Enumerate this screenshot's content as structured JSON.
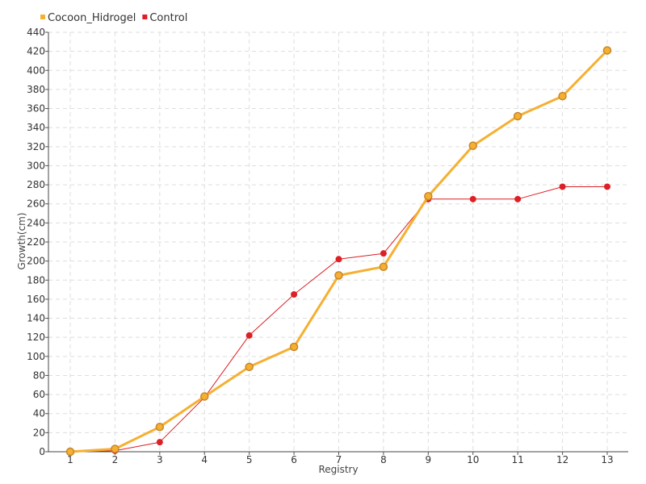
{
  "chart_data": {
    "type": "line",
    "title": "",
    "xlabel": "Registry",
    "ylabel": "Growth(cm)",
    "x": [
      "1",
      "2",
      "3",
      "4",
      "5",
      "6",
      "7",
      "8",
      "9",
      "10",
      "11",
      "12",
      "13"
    ],
    "ylim": [
      0,
      440
    ],
    "yticks": [
      0,
      20,
      40,
      60,
      80,
      100,
      120,
      140,
      160,
      180,
      200,
      220,
      240,
      260,
      280,
      300,
      320,
      340,
      360,
      380,
      400,
      420,
      440
    ],
    "grid": true,
    "legend_position": "top-left",
    "series": [
      {
        "name": "Cocoon_Hidrogel",
        "color": "#f5b032",
        "values": [
          0,
          3,
          26,
          58,
          89,
          110,
          185,
          194,
          268,
          321,
          352,
          373,
          421
        ]
      },
      {
        "name": "Control",
        "color": "#dd1f26",
        "values": [
          0,
          1,
          10,
          57,
          122,
          165,
          202,
          208,
          265,
          265,
          265,
          278,
          278
        ]
      }
    ]
  }
}
